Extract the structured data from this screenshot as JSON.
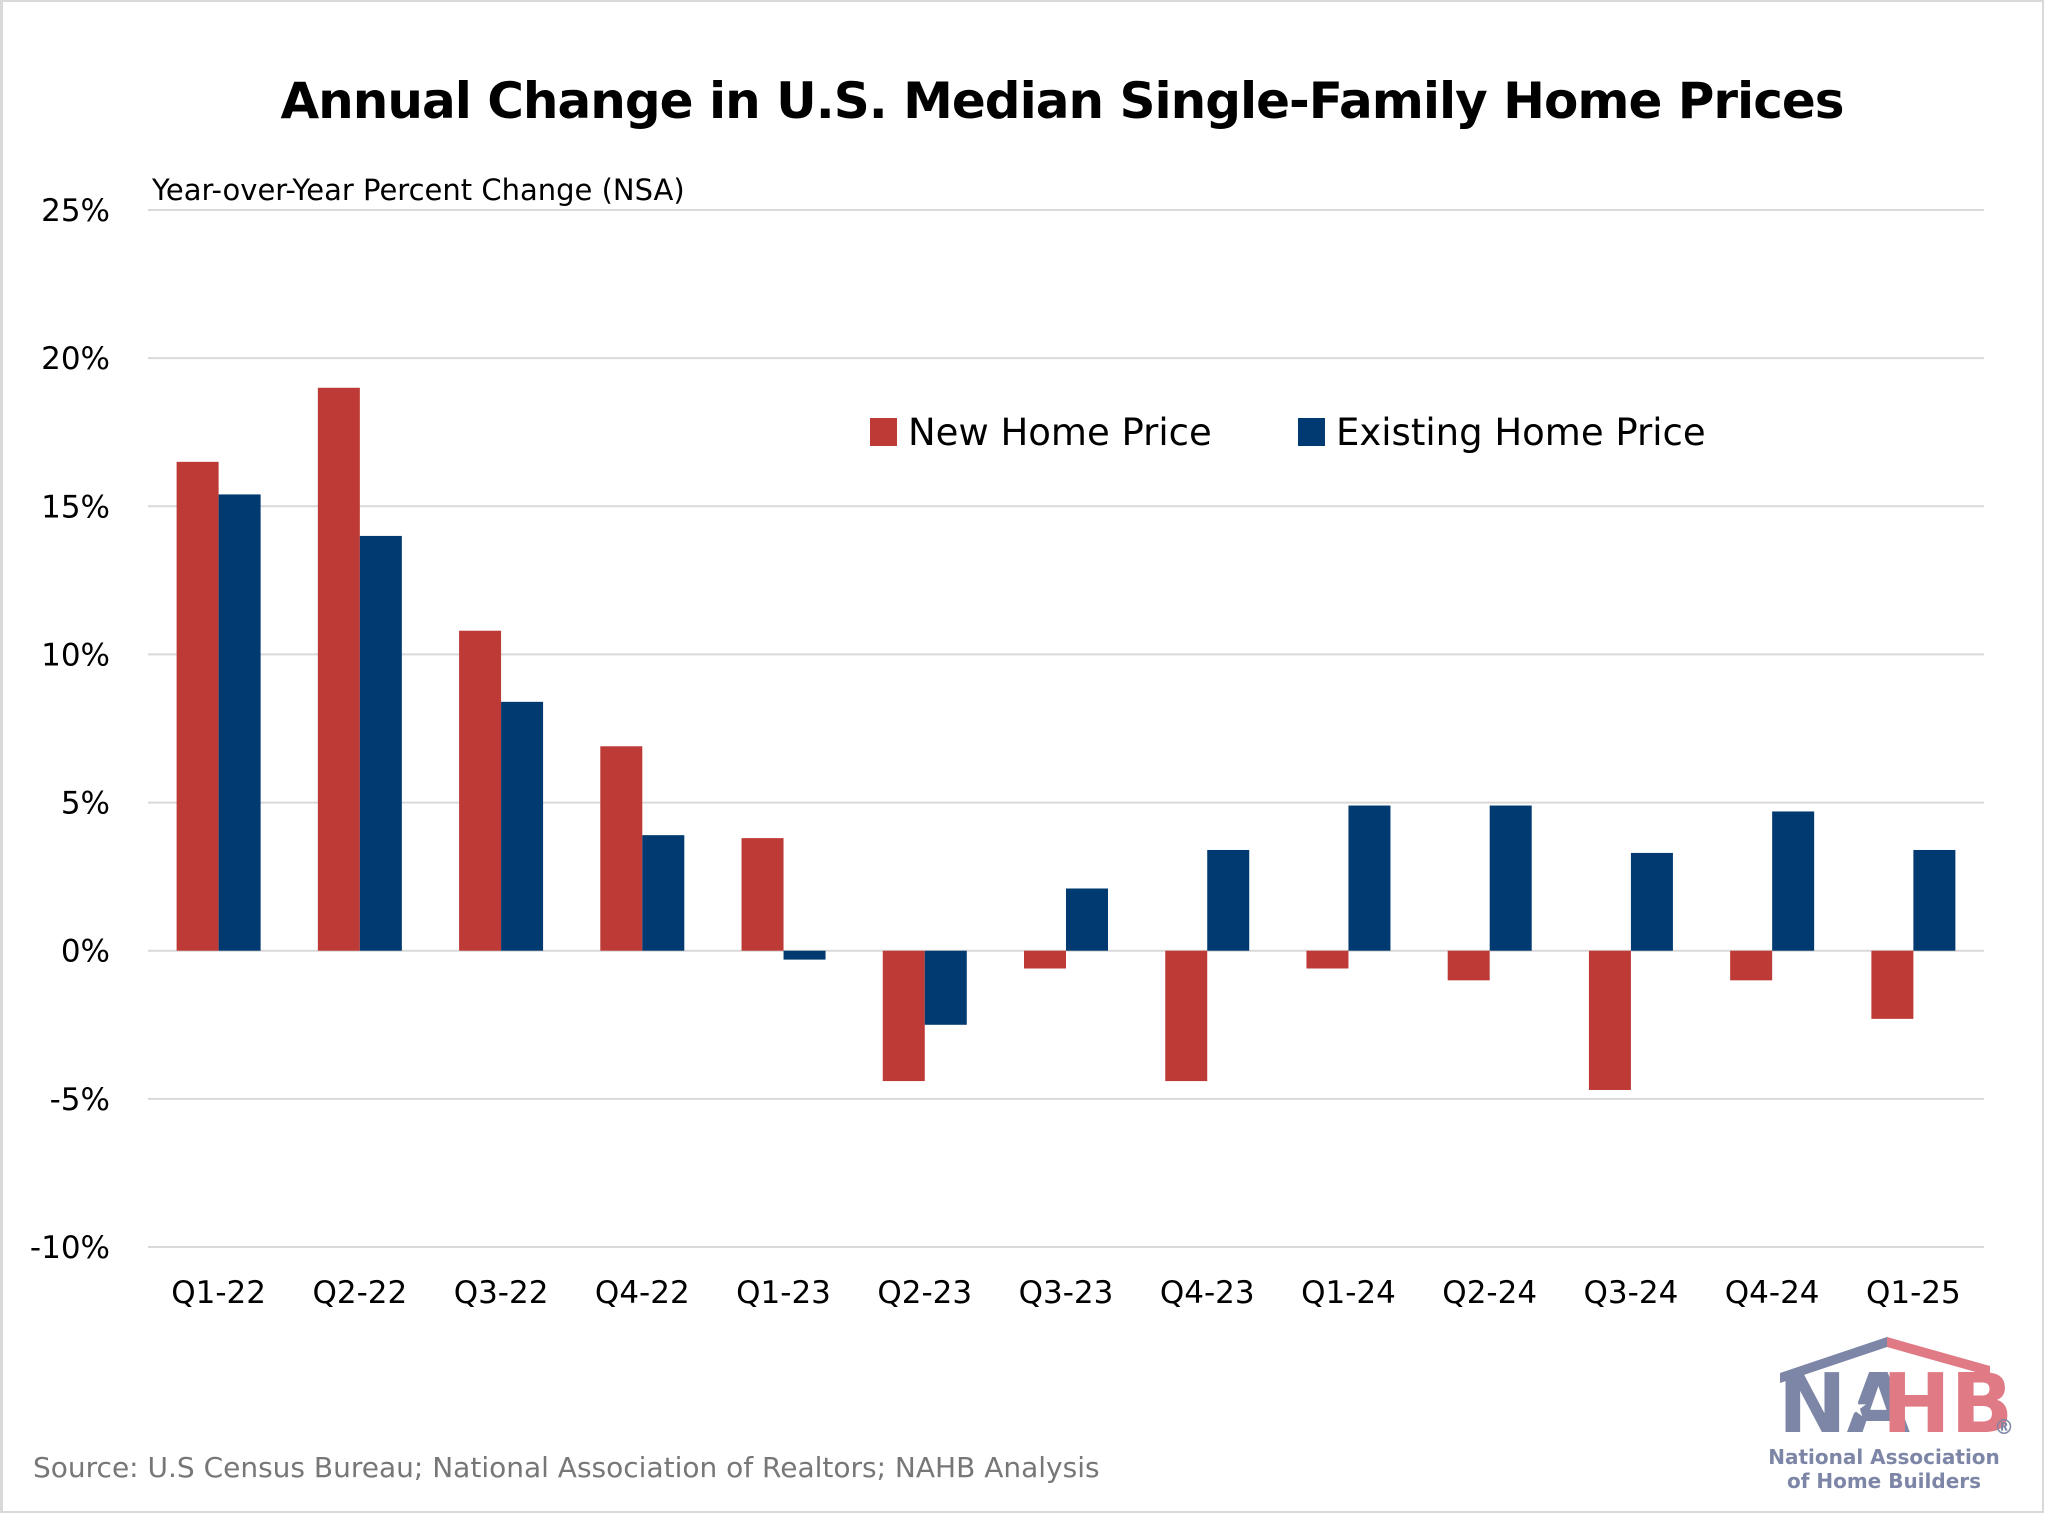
{
  "colors": {
    "new_home": "#be3a36",
    "existing_home": "#003a70",
    "grid": "#d9d9d9",
    "logo_blue": "#7d86a6",
    "logo_red": "#e07a84"
  },
  "chart_data": {
    "type": "bar",
    "title": "Annual Change in U.S. Median Single-Family Home Prices",
    "ylabel": "Year-over-Year Percent Change (NSA)",
    "xlabel": "",
    "ylim": [
      -10,
      25
    ],
    "yticks": [
      25,
      20,
      15,
      10,
      5,
      0,
      -5,
      -10
    ],
    "ytick_labels": [
      "25%",
      "20%",
      "15%",
      "10%",
      "5%",
      "0%",
      "-5%",
      "-10%"
    ],
    "grid": true,
    "legend_position": "top-right",
    "categories": [
      "Q1-22",
      "Q2-22",
      "Q3-22",
      "Q4-22",
      "Q1-23",
      "Q2-23",
      "Q3-23",
      "Q4-23",
      "Q1-24",
      "Q2-24",
      "Q3-24",
      "Q4-24",
      "Q1-25"
    ],
    "series": [
      {
        "name": "New Home Price",
        "values": [
          16.5,
          19.0,
          10.8,
          6.9,
          3.8,
          -4.4,
          -0.6,
          -4.4,
          -0.6,
          -1.0,
          -4.7,
          -1.0,
          -2.3
        ]
      },
      {
        "name": "Existing Home Price",
        "values": [
          15.4,
          14.0,
          8.4,
          3.9,
          -0.3,
          -2.5,
          2.1,
          3.4,
          4.9,
          4.9,
          3.3,
          4.7,
          3.4
        ]
      }
    ]
  },
  "source": "Source: U.S Census Bureau; National Association of Realtors; NAHB Analysis",
  "logo": {
    "abbr_left": "NA",
    "abbr_right": "HB",
    "registered": "®",
    "line1": "National Association",
    "line2": "of Home Builders"
  }
}
